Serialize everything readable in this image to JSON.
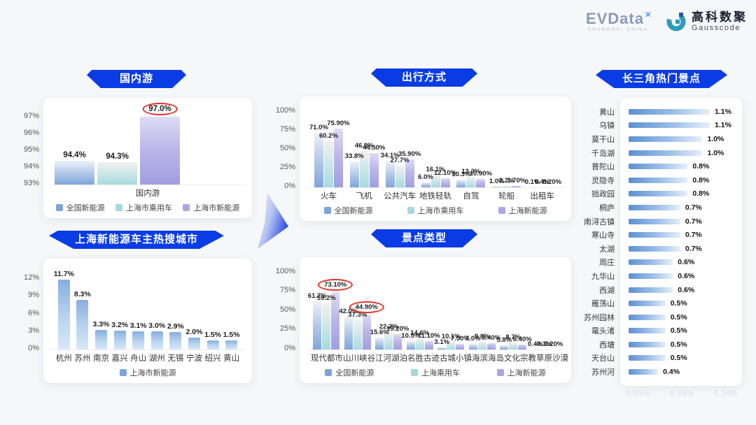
{
  "header": {
    "evdata": {
      "text": "EVData",
      "mark": "✕",
      "subtext": "SHANGHAI CHINA"
    },
    "gausscode": {
      "cn": "高科数聚",
      "en": "Gausscode"
    }
  },
  "colors": {
    "banner_blue": "#0a3ce6",
    "series_national_blue": "#7da3d8",
    "series_passenger_teal": "#a6d8dc",
    "series_nev_purple": "#aca7e4",
    "hbar_blue": "#5b90d2",
    "highlight_circle_red": "#e5342a"
  },
  "chart_data": [
    {
      "id": "domestic",
      "title": "国内游",
      "type": "bar",
      "categories": [
        "国内游"
      ],
      "series": [
        {
          "name": "全国新能源",
          "values": [
            94.4
          ],
          "labels": [
            "94.4%"
          ]
        },
        {
          "name": "上海市乘用车",
          "values": [
            94.3
          ],
          "labels": [
            "94.3%"
          ]
        },
        {
          "name": "上海市新能源",
          "values": [
            97.0
          ],
          "labels": [
            "97.0%"
          ],
          "circled": [
            true
          ]
        }
      ],
      "ylim": [
        93,
        97.6
      ],
      "yticks": [
        93,
        94,
        95,
        96,
        97
      ],
      "ytick_labels": [
        "93%",
        "94%",
        "95%",
        "96%",
        "97%"
      ],
      "legend_position": "bottom"
    },
    {
      "id": "cities",
      "title": "上海新能源车主热搜城市",
      "type": "bar",
      "categories": [
        "杭州",
        "苏州",
        "南京",
        "嘉兴",
        "舟山",
        "湖州",
        "无锡",
        "宁波",
        "绍兴",
        "黄山"
      ],
      "series": [
        {
          "name": "上海市新能源",
          "values": [
            11.7,
            8.3,
            3.3,
            3.2,
            3.1,
            3.0,
            2.9,
            2.0,
            1.5,
            1.5
          ],
          "labels": [
            "11.7%",
            "8.3%",
            "3.3%",
            "3.2%",
            "3.1%",
            "3.0%",
            "2.9%",
            "2.0%",
            "1.5%",
            "1.5%"
          ]
        }
      ],
      "ylim": [
        0,
        13.8
      ],
      "yticks": [
        0,
        3,
        6,
        9,
        12
      ],
      "ytick_labels": [
        "0%",
        "3%",
        "6%",
        "9%",
        "12%"
      ],
      "legend_position": "bottom"
    },
    {
      "id": "transport",
      "title": "出行方式",
      "type": "bar",
      "categories": [
        "火车",
        "飞机",
        "公共汽车",
        "地铁轻轨",
        "自驾",
        "轮船",
        "出租车"
      ],
      "series": [
        {
          "name": "全国新能源",
          "values": [
            71.0,
            33.8,
            34.1,
            6.0,
            10.3,
            1.0,
            0.1
          ],
          "labels": [
            "71.0%",
            "33.8%",
            "34.1%",
            "6.0%",
            "10.3%",
            "1.0%",
            "0.1%"
          ]
        },
        {
          "name": "上海市乘用车",
          "values": [
            60.2,
            46.9,
            27.7,
            16.1,
            13.2,
            2.2,
            0.4
          ],
          "labels": [
            "60.2%",
            "46.9%",
            "27.7%",
            "16.1%",
            "13.2%",
            "2.2%",
            "0.4%"
          ]
        },
        {
          "name": "上海新能源",
          "values": [
            75.9,
            44.5,
            35.9,
            12.1,
            10.9,
            1.7,
            0.2
          ],
          "labels": [
            "75.90%",
            "44.50%",
            "35.90%",
            "12.10%",
            "10.90%",
            "1.70%",
            "0.20%"
          ]
        }
      ],
      "ylim": [
        0,
        107
      ],
      "yticks": [
        0,
        25,
        50,
        75,
        100
      ],
      "ytick_labels": [
        "0%",
        "25%",
        "50%",
        "75%",
        "100%"
      ],
      "legend_position": "bottom"
    },
    {
      "id": "attractions",
      "title": "景点类型",
      "type": "bar",
      "categories": [
        "现代都市",
        "山川峡谷",
        "江河湖泊",
        "名胜古迹",
        "古城小镇",
        "海滨海岛",
        "文化宗教",
        "草原沙漠"
      ],
      "series": [
        {
          "name": "全国新能源",
          "values": [
            61.7,
            42.0,
            15.6,
            10.5,
            3.1,
            7.0,
            5.8,
            0.4
          ],
          "labels": [
            "61.7%",
            "42.0%",
            "15.6%",
            "10.5%",
            "3.1%",
            "7.0%",
            "5.8%",
            "0.4%"
          ]
        },
        {
          "name": "上海乘用车",
          "values": [
            59.2,
            37.3,
            22.2,
            14.6,
            10.1,
            9.8,
            8.7,
            0.3
          ],
          "labels": [
            "59.2%",
            "37.3%",
            "22.2%",
            "14.6%",
            "10.1%",
            "9.8%",
            "8.7%",
            "0.3%"
          ]
        },
        {
          "name": "上海新能源",
          "values": [
            73.1,
            44.9,
            19.2,
            11.1,
            7.5,
            8.4,
            6.4,
            0.2
          ],
          "labels": [
            "73.10%",
            "44.90%",
            "19.20%",
            "11.10%",
            "7.50%",
            "8.40%",
            "6.40%",
            "0.20%"
          ],
          "circled": [
            true,
            true,
            false,
            false,
            false,
            false,
            false,
            false
          ]
        }
      ],
      "ylim": [
        0,
        107
      ],
      "yticks": [
        0,
        25,
        50,
        75,
        100
      ],
      "ytick_labels": [
        "0%",
        "25%",
        "50%",
        "75%",
        "100%"
      ],
      "legend_position": "bottom"
    },
    {
      "id": "hotspots",
      "title": "长三角热门景点",
      "type": "bar-horizontal",
      "categories": [
        "黄山",
        "乌镇",
        "莫干山",
        "千岛湖",
        "普陀山",
        "灵隐寺",
        "拙政园",
        "桐庐",
        "南浔古镇",
        "寒山寺",
        "太湖",
        "周庄",
        "九华山",
        "西湖",
        "雁荡山",
        "苏州园林",
        "鼋头渚",
        "西塘",
        "天台山",
        "苏州河"
      ],
      "values": [
        1.1,
        1.1,
        1.0,
        1.0,
        0.8,
        0.8,
        0.8,
        0.7,
        0.7,
        0.7,
        0.7,
        0.6,
        0.6,
        0.6,
        0.5,
        0.5,
        0.5,
        0.5,
        0.5,
        0.4
      ],
      "labels": [
        "1.1%",
        "1.1%",
        "1.0%",
        "1.0%",
        "0.8%",
        "0.8%",
        "0.8%",
        "0.7%",
        "0.7%",
        "0.7%",
        "0.7%",
        "0.6%",
        "0.6%",
        "0.6%",
        "0.5%",
        "0.5%",
        "0.5%",
        "0.5%",
        "0.5%",
        "0.4%"
      ],
      "xlim": [
        0,
        1.1
      ],
      "faint_axis": "0.00% 0.55% 1.10%"
    }
  ]
}
